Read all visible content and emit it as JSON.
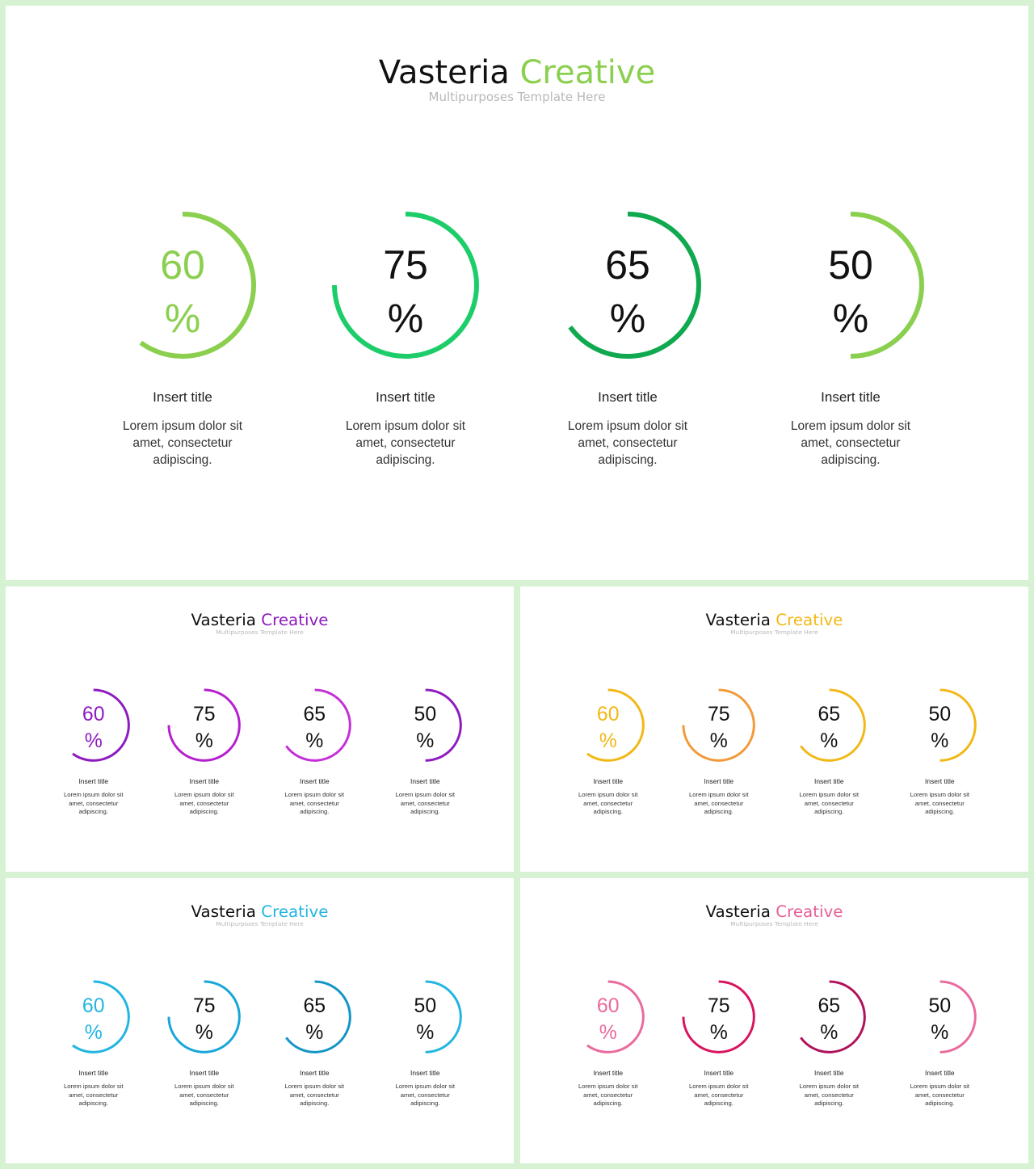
{
  "slides": [
    {
      "title_part1": "Vasteria",
      "title_part2": "Creative",
      "subtitle": "Multipurposes Template Here",
      "accent_color": "#8bcf4f",
      "items": [
        {
          "value": 60,
          "number": "60",
          "percent_sign": "%",
          "title": "Insert title",
          "desc": "Lorem ipsum dolor sit amet, consectetur adipiscing.",
          "ring_color": "#8bcf4f",
          "number_color": "#8bcf4f"
        },
        {
          "value": 75,
          "number": "75",
          "percent_sign": "%",
          "title": "Insert title",
          "desc": "Lorem ipsum dolor sit amet, consectetur adipiscing.",
          "ring_color": "#1dcd6a",
          "number_color": "#111111"
        },
        {
          "value": 65,
          "number": "65",
          "percent_sign": "%",
          "title": "Insert title",
          "desc": "Lorem ipsum dolor sit amet, consectetur adipiscing.",
          "ring_color": "#10a94f",
          "number_color": "#111111"
        },
        {
          "value": 50,
          "number": "50",
          "percent_sign": "%",
          "title": "Insert title",
          "desc": "Lorem ipsum dolor sit amet, consectetur adipiscing.",
          "ring_color": "#8bcf4f",
          "number_color": "#111111"
        }
      ]
    },
    {
      "title_part1": "Vasteria",
      "title_part2": "Creative",
      "subtitle": "Multipurposes Template Here",
      "accent_color": "#8e1bbf",
      "items": [
        {
          "value": 60,
          "number": "60",
          "percent_sign": "%",
          "title": "Insert title",
          "desc": "Lorem ipsum dolor sit amet, consectetur adipiscing.",
          "ring_color": "#8e1bbf",
          "number_color": "#8e1bbf"
        },
        {
          "value": 75,
          "number": "75",
          "percent_sign": "%",
          "title": "Insert title",
          "desc": "Lorem ipsum dolor sit amet, consectetur adipiscing.",
          "ring_color": "#b51fcf",
          "number_color": "#111111"
        },
        {
          "value": 65,
          "number": "65",
          "percent_sign": "%",
          "title": "Insert title",
          "desc": "Lorem ipsum dolor sit amet, consectetur adipiscing.",
          "ring_color": "#c42fd8",
          "number_color": "#111111"
        },
        {
          "value": 50,
          "number": "50",
          "percent_sign": "%",
          "title": "Insert title",
          "desc": "Lorem ipsum dolor sit amet, consectetur adipiscing.",
          "ring_color": "#8e1bbf",
          "number_color": "#111111"
        }
      ]
    },
    {
      "title_part1": "Vasteria",
      "title_part2": "Creative",
      "subtitle": "Multipurposes Template Here",
      "accent_color": "#f2b817",
      "items": [
        {
          "value": 60,
          "number": "60",
          "percent_sign": "%",
          "title": "Insert title",
          "desc": "Lorem ipsum dolor sit amet, consectetur adipiscing.",
          "ring_color": "#f2b817",
          "number_color": "#f2b817"
        },
        {
          "value": 75,
          "number": "75",
          "percent_sign": "%",
          "title": "Insert title",
          "desc": "Lorem ipsum dolor sit amet, consectetur adipiscing.",
          "ring_color": "#f29a3a",
          "number_color": "#111111"
        },
        {
          "value": 65,
          "number": "65",
          "percent_sign": "%",
          "title": "Insert title",
          "desc": "Lorem ipsum dolor sit amet, consectetur adipiscing.",
          "ring_color": "#f2b817",
          "number_color": "#111111"
        },
        {
          "value": 50,
          "number": "50",
          "percent_sign": "%",
          "title": "Insert title",
          "desc": "Lorem ipsum dolor sit amet, consectetur adipiscing.",
          "ring_color": "#f2b817",
          "number_color": "#111111"
        }
      ]
    },
    {
      "title_part1": "Vasteria",
      "title_part2": "Creative",
      "subtitle": "Multipurposes Template Here",
      "accent_color": "#22b5e2",
      "items": [
        {
          "value": 60,
          "number": "60",
          "percent_sign": "%",
          "title": "Insert title",
          "desc": "Lorem ipsum dolor sit amet, consectetur adipiscing.",
          "ring_color": "#22b5e2",
          "number_color": "#22b5e2"
        },
        {
          "value": 75,
          "number": "75",
          "percent_sign": "%",
          "title": "Insert title",
          "desc": "Lorem ipsum dolor sit amet, consectetur adipiscing.",
          "ring_color": "#16a6d8",
          "number_color": "#111111"
        },
        {
          "value": 65,
          "number": "65",
          "percent_sign": "%",
          "title": "Insert title",
          "desc": "Lorem ipsum dolor sit amet, consectetur adipiscing.",
          "ring_color": "#1295c6",
          "number_color": "#111111"
        },
        {
          "value": 50,
          "number": "50",
          "percent_sign": "%",
          "title": "Insert title",
          "desc": "Lorem ipsum dolor sit amet, consectetur adipiscing.",
          "ring_color": "#22b5e2",
          "number_color": "#111111"
        }
      ]
    },
    {
      "title_part1": "Vasteria",
      "title_part2": "Creative",
      "subtitle": "Multipurposes Template Here",
      "accent_color": "#e85f97",
      "items": [
        {
          "value": 60,
          "number": "60",
          "percent_sign": "%",
          "title": "Insert title",
          "desc": "Lorem ipsum dolor sit amet, consectetur adipiscing.",
          "ring_color": "#ea6a9e",
          "number_color": "#ea6a9e"
        },
        {
          "value": 75,
          "number": "75",
          "percent_sign": "%",
          "title": "Insert title",
          "desc": "Lorem ipsum dolor sit amet, consectetur adipiscing.",
          "ring_color": "#d9145f",
          "number_color": "#111111"
        },
        {
          "value": 65,
          "number": "65",
          "percent_sign": "%",
          "title": "Insert title",
          "desc": "Lorem ipsum dolor sit amet, consectetur adipiscing.",
          "ring_color": "#b0125a",
          "number_color": "#111111"
        },
        {
          "value": 50,
          "number": "50",
          "percent_sign": "%",
          "title": "Insert title",
          "desc": "Lorem ipsum dolor sit amet, consectetur adipiscing.",
          "ring_color": "#ea6a9e",
          "number_color": "#111111"
        }
      ]
    }
  ]
}
